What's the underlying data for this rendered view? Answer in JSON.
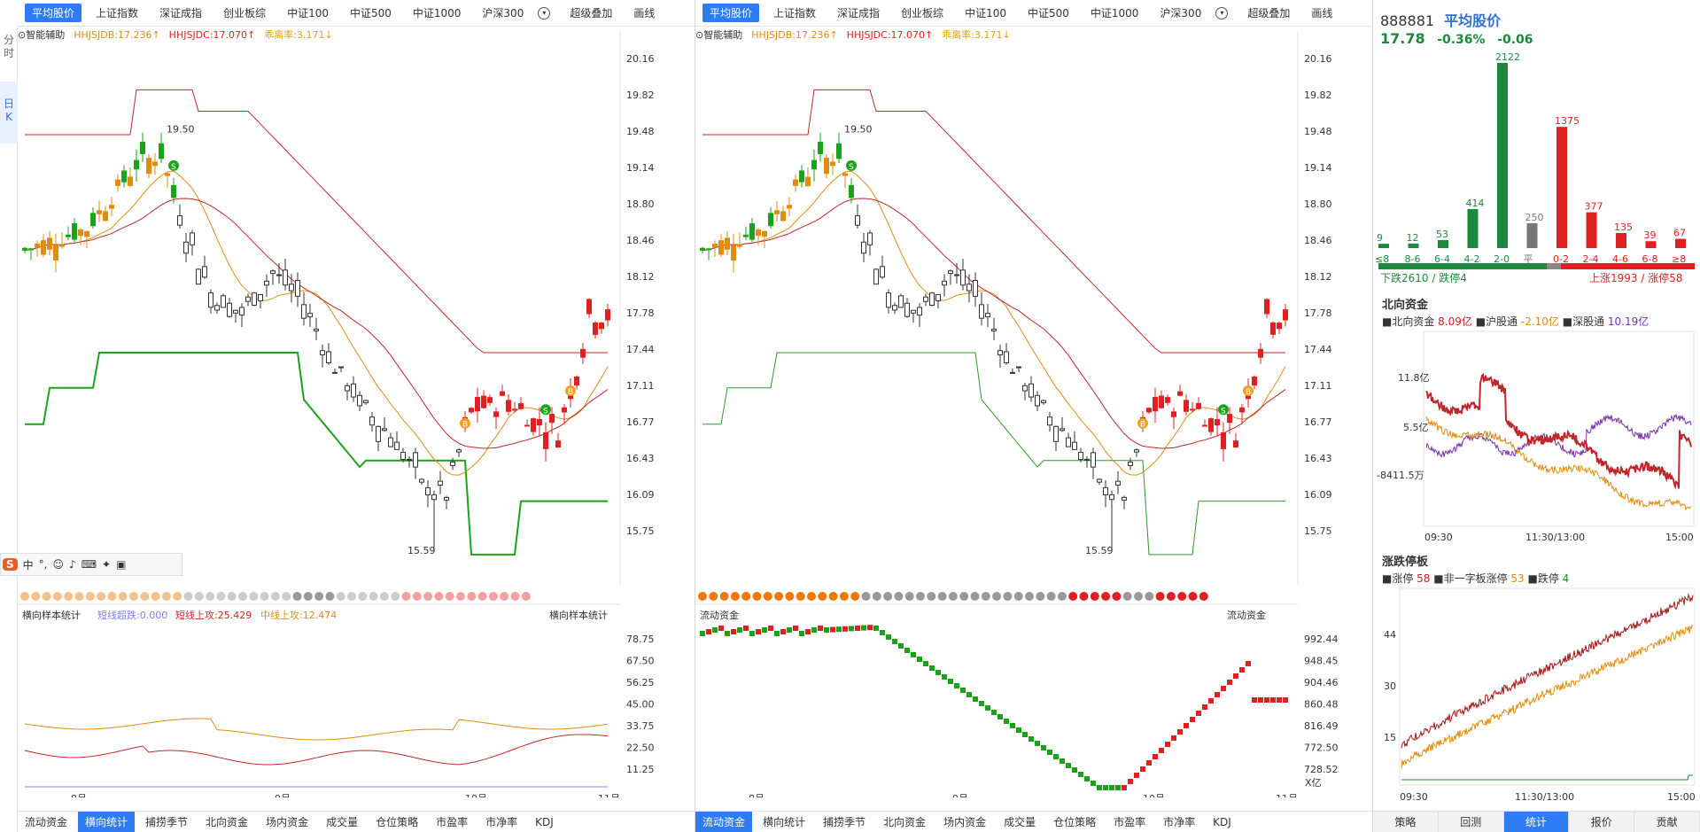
{
  "vtabs": [
    "分\n时",
    "日\nK"
  ],
  "panels": [
    {
      "tabs": [
        "平均股价",
        "上证指数",
        "深证成指",
        "创业板综",
        "中证100",
        "中证500",
        "中证1000",
        "沪深300"
      ],
      "extra": [
        "超级叠加",
        "画线"
      ],
      "sub": {
        "assist": "智能辅助",
        "db": "HHJSJDB:17.236",
        "dc": "HHJSJDC:17.070",
        "dev": "乖离率:3.171"
      },
      "price_ticks": [
        "20.16",
        "19.82",
        "19.48",
        "19.14",
        "18.80",
        "18.46",
        "18.12",
        "17.78",
        "17.44",
        "17.11",
        "16.77",
        "16.43",
        "16.09",
        "15.75"
      ],
      "hi_label": "19.50",
      "lo_label": "15.59",
      "lower_title": "横向样本统计",
      "lower_legend": [
        {
          "t": "短线超跌:0.000",
          "c": "#7f7fff"
        },
        {
          "t": "短线上攻:25.429",
          "c": "#e02020"
        },
        {
          "t": "中线上攻:12.474",
          "c": "#e08c10"
        }
      ],
      "lower_ticks": [
        "78.75",
        "67.50",
        "56.25",
        "45.00",
        "33.75",
        "22.50",
        "11.25"
      ],
      "months": [
        "8月",
        "9月",
        "10月",
        "11月"
      ],
      "bottom_tabs": [
        "流动资金",
        "横向统计",
        "捕捞季节",
        "北向资金",
        "场内资金",
        "成交量",
        "仓位策略",
        "市盈率",
        "市净率",
        "KDJ"
      ],
      "sel_bottom": 1
    },
    {
      "tabs": [
        "平均股价",
        "上证指数",
        "深证成指",
        "创业板综",
        "中证100",
        "中证500",
        "中证1000",
        "沪深300"
      ],
      "extra": [
        "超级叠加",
        "画线"
      ],
      "sub": {
        "assist": "智能辅助",
        "db": "HHJSJDB:17.236",
        "dc": "HHJSJDC:17.070",
        "dev": "乖离率:3.171"
      },
      "price_ticks": [
        "20.16",
        "19.82",
        "19.48",
        "19.14",
        "18.80",
        "18.46",
        "18.12",
        "17.78",
        "17.44",
        "17.11",
        "16.77",
        "16.43",
        "16.09",
        "15.75"
      ],
      "hi_label": "19.50",
      "lo_label": "15.59",
      "lower_title": "流动资金",
      "lower_legend": [],
      "lower_ticks": [
        "992.44",
        "948.45",
        "904.46",
        "860.48",
        "816.49",
        "772.50",
        "728.52"
      ],
      "lower_unit": "X亿",
      "months": [
        "8月",
        "9月",
        "10月",
        "11月"
      ],
      "bottom_tabs": [
        "流动资金",
        "横向统计",
        "捕捞季节",
        "北向资金",
        "场内资金",
        "成交量",
        "仓位策略",
        "市盈率",
        "市净率",
        "KDJ"
      ],
      "sel_bottom": 0
    }
  ],
  "right": {
    "code": "888881",
    "name": "平均股价",
    "price": "17.78",
    "pct": "-0.36%",
    "chg": "-0.06",
    "dist": {
      "bins": [
        "≤8",
        "8-6",
        "6-4",
        "4-2",
        "2-0",
        "平",
        "0-2",
        "2-4",
        "4-6",
        "6-8",
        "≥8"
      ],
      "values": [
        9,
        12,
        53,
        414,
        2122,
        250,
        1375,
        377,
        135,
        39,
        67
      ]
    },
    "down": "下跌2610 / 跌停4",
    "up": "上涨1993 / 涨停58",
    "north": {
      "title": "北向资金",
      "legend": [
        "北向资金",
        "8.09亿",
        "沪股通",
        "-2.10亿",
        "深股通",
        "10.19亿"
      ],
      "ticks": [
        "11.8亿",
        "5.5亿",
        "-8411.5万"
      ],
      "times": [
        "09:30",
        "11:30/13:00",
        "15:00"
      ]
    },
    "zt": {
      "title": "涨跌停板",
      "legend": [
        "涨停",
        "58",
        "非一字板涨停",
        "53",
        "跌停",
        "4"
      ],
      "ticks": [
        "44",
        "30",
        "15"
      ],
      "times": [
        "09:30",
        "11:30/13:00",
        "15:00"
      ]
    },
    "tabs": [
      "策略",
      "回测",
      "统计",
      "报价",
      "贡献"
    ],
    "sel": 2
  },
  "chart_data": {
    "type": "candlestick",
    "title": "平均股价",
    "x_labels": [
      "8月",
      "9月",
      "10月",
      "11月"
    ],
    "ylim": [
      15.59,
      20.16
    ],
    "high": 19.5,
    "low": 15.59,
    "last": 17.78
  }
}
